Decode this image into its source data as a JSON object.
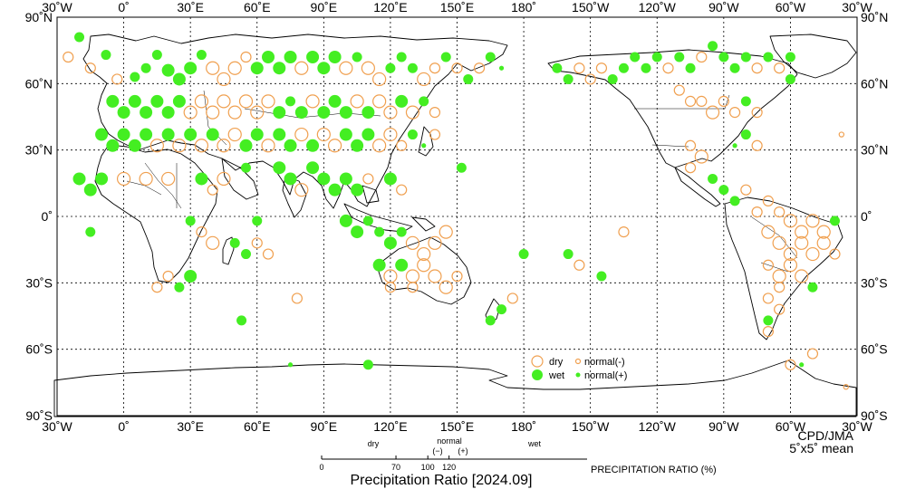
{
  "map": {
    "title": "Precipitation Ratio [2024.09]",
    "credit": "CPD/JMA",
    "resolution": "5˚x5˚ mean",
    "lon_labels": [
      "30˚W",
      "0˚",
      "30˚E",
      "60˚E",
      "90˚E",
      "120˚E",
      "150˚E",
      "180˚",
      "150˚W",
      "120˚W",
      "90˚W",
      "60˚W",
      "30˚W"
    ],
    "lat_labels": [
      "90˚N",
      "60˚N",
      "30˚N",
      "0˚",
      "30˚S",
      "60˚S",
      "90˚S"
    ],
    "lon_range_deg": [
      -30,
      330
    ],
    "lat_range_deg": [
      -90,
      90
    ],
    "colors": {
      "dry": "#f0a050",
      "wet": "#44ee22"
    }
  },
  "legend": {
    "dry": "dry",
    "wet": "wet",
    "normal_minus": "normal(-)",
    "normal_plus": "normal(+)"
  },
  "scale": {
    "dry": "dry",
    "normal": "normal",
    "minus": "(−)",
    "plus": "(+)",
    "wet": "wet",
    "ticks": [
      "0",
      "70",
      "100",
      "120"
    ],
    "tick_values": [
      0,
      70,
      100,
      120
    ],
    "axis_range": [
      0,
      250
    ],
    "label": "PRECIPITATION RATIO  (%)"
  },
  "stations": [
    {
      "lon": -20,
      "lat": 81,
      "k": "wet",
      "s": 2
    },
    {
      "lon": -25,
      "lat": 72,
      "k": "dry",
      "s": 2
    },
    {
      "lon": -15,
      "lat": 67,
      "k": "dry",
      "s": 2
    },
    {
      "lon": -8,
      "lat": 73,
      "k": "wet",
      "s": 2
    },
    {
      "lon": -3,
      "lat": 62,
      "k": "dry",
      "s": 2
    },
    {
      "lon": 5,
      "lat": 63,
      "k": "wet",
      "s": 2
    },
    {
      "lon": 10,
      "lat": 67,
      "k": "wet",
      "s": 2
    },
    {
      "lon": 15,
      "lat": 73,
      "k": "wet",
      "s": 2
    },
    {
      "lon": 20,
      "lat": 66,
      "k": "wet",
      "s": 3
    },
    {
      "lon": 25,
      "lat": 62,
      "k": "wet",
      "s": 3
    },
    {
      "lon": 30,
      "lat": 67,
      "k": "wet",
      "s": 3
    },
    {
      "lon": 35,
      "lat": 73,
      "k": "wet",
      "s": 2
    },
    {
      "lon": 40,
      "lat": 67,
      "k": "dry",
      "s": 3
    },
    {
      "lon": 45,
      "lat": 62,
      "k": "dry",
      "s": 3
    },
    {
      "lon": 50,
      "lat": 67,
      "k": "dry",
      "s": 3
    },
    {
      "lon": 55,
      "lat": 72,
      "k": "dry",
      "s": 2
    },
    {
      "lon": 60,
      "lat": 67,
      "k": "wet",
      "s": 3
    },
    {
      "lon": 65,
      "lat": 72,
      "k": "wet",
      "s": 3
    },
    {
      "lon": 70,
      "lat": 67,
      "k": "wet",
      "s": 3
    },
    {
      "lon": 75,
      "lat": 72,
      "k": "wet",
      "s": 3
    },
    {
      "lon": 80,
      "lat": 67,
      "k": "dry",
      "s": 3
    },
    {
      "lon": 85,
      "lat": 72,
      "k": "wet",
      "s": 3
    },
    {
      "lon": 90,
      "lat": 67,
      "k": "wet",
      "s": 3
    },
    {
      "lon": 95,
      "lat": 72,
      "k": "wet",
      "s": 3
    },
    {
      "lon": 100,
      "lat": 67,
      "k": "dry",
      "s": 3
    },
    {
      "lon": 105,
      "lat": 72,
      "k": "wet",
      "s": 2
    },
    {
      "lon": 110,
      "lat": 67,
      "k": "dry",
      "s": 3
    },
    {
      "lon": 115,
      "lat": 62,
      "k": "dry",
      "s": 3
    },
    {
      "lon": 120,
      "lat": 67,
      "k": "wet",
      "s": 2
    },
    {
      "lon": 125,
      "lat": 72,
      "k": "wet",
      "s": 2
    },
    {
      "lon": 130,
      "lat": 67,
      "k": "wet",
      "s": 2
    },
    {
      "lon": 135,
      "lat": 62,
      "k": "dry",
      "s": 3
    },
    {
      "lon": 140,
      "lat": 67,
      "k": "dry",
      "s": 2
    },
    {
      "lon": 145,
      "lat": 72,
      "k": "wet",
      "s": 2
    },
    {
      "lon": 150,
      "lat": 67,
      "k": "dry",
      "s": 2
    },
    {
      "lon": 155,
      "lat": 62,
      "k": "wet",
      "s": 2
    },
    {
      "lon": 160,
      "lat": 67,
      "k": "dry",
      "s": 2
    },
    {
      "lon": 165,
      "lat": 72,
      "k": "wet",
      "s": 2
    },
    {
      "lon": 170,
      "lat": 67,
      "k": "wet",
      "s": 1
    },
    {
      "lon": -5,
      "lat": 52,
      "k": "wet",
      "s": 3
    },
    {
      "lon": 0,
      "lat": 47,
      "k": "wet",
      "s": 3
    },
    {
      "lon": 5,
      "lat": 52,
      "k": "wet",
      "s": 3
    },
    {
      "lon": 10,
      "lat": 47,
      "k": "wet",
      "s": 3
    },
    {
      "lon": 15,
      "lat": 52,
      "k": "wet",
      "s": 3
    },
    {
      "lon": 20,
      "lat": 47,
      "k": "wet",
      "s": 3
    },
    {
      "lon": 25,
      "lat": 52,
      "k": "wet",
      "s": 3
    },
    {
      "lon": 30,
      "lat": 47,
      "k": "dry",
      "s": 3
    },
    {
      "lon": 35,
      "lat": 52,
      "k": "dry",
      "s": 3
    },
    {
      "lon": 40,
      "lat": 47,
      "k": "dry",
      "s": 3
    },
    {
      "lon": 45,
      "lat": 52,
      "k": "dry",
      "s": 3
    },
    {
      "lon": 50,
      "lat": 47,
      "k": "dry",
      "s": 3
    },
    {
      "lon": 55,
      "lat": 52,
      "k": "dry",
      "s": 3
    },
    {
      "lon": 60,
      "lat": 47,
      "k": "dry",
      "s": 3
    },
    {
      "lon": 65,
      "lat": 52,
      "k": "dry",
      "s": 3
    },
    {
      "lon": 70,
      "lat": 47,
      "k": "wet",
      "s": 3
    },
    {
      "lon": 75,
      "lat": 52,
      "k": "wet",
      "s": 2
    },
    {
      "lon": 80,
      "lat": 47,
      "k": "wet",
      "s": 3
    },
    {
      "lon": 85,
      "lat": 52,
      "k": "dry",
      "s": 3
    },
    {
      "lon": 90,
      "lat": 47,
      "k": "wet",
      "s": 3
    },
    {
      "lon": 95,
      "lat": 52,
      "k": "wet",
      "s": 3
    },
    {
      "lon": 100,
      "lat": 47,
      "k": "wet",
      "s": 3
    },
    {
      "lon": 105,
      "lat": 52,
      "k": "dry",
      "s": 3
    },
    {
      "lon": 110,
      "lat": 47,
      "k": "wet",
      "s": 3
    },
    {
      "lon": 115,
      "lat": 52,
      "k": "dry",
      "s": 3
    },
    {
      "lon": 120,
      "lat": 47,
      "k": "dry",
      "s": 3
    },
    {
      "lon": 125,
      "lat": 52,
      "k": "wet",
      "s": 3
    },
    {
      "lon": 130,
      "lat": 47,
      "k": "dry",
      "s": 3
    },
    {
      "lon": 135,
      "lat": 52,
      "k": "wet",
      "s": 2
    },
    {
      "lon": 140,
      "lat": 47,
      "k": "dry",
      "s": 2
    },
    {
      "lon": -10,
      "lat": 37,
      "k": "wet",
      "s": 3
    },
    {
      "lon": -5,
      "lat": 32,
      "k": "wet",
      "s": 3
    },
    {
      "lon": 0,
      "lat": 37,
      "k": "wet",
      "s": 3
    },
    {
      "lon": 5,
      "lat": 32,
      "k": "wet",
      "s": 3
    },
    {
      "lon": 10,
      "lat": 37,
      "k": "wet",
      "s": 3
    },
    {
      "lon": 15,
      "lat": 32,
      "k": "dry",
      "s": 3
    },
    {
      "lon": 20,
      "lat": 37,
      "k": "wet",
      "s": 3
    },
    {
      "lon": 25,
      "lat": 32,
      "k": "dry",
      "s": 3
    },
    {
      "lon": 30,
      "lat": 37,
      "k": "wet",
      "s": 3
    },
    {
      "lon": 35,
      "lat": 32,
      "k": "dry",
      "s": 3
    },
    {
      "lon": 40,
      "lat": 37,
      "k": "wet",
      "s": 3
    },
    {
      "lon": 45,
      "lat": 32,
      "k": "dry",
      "s": 3
    },
    {
      "lon": 50,
      "lat": 37,
      "k": "dry",
      "s": 3
    },
    {
      "lon": 55,
      "lat": 32,
      "k": "wet",
      "s": 3
    },
    {
      "lon": 60,
      "lat": 37,
      "k": "wet",
      "s": 3
    },
    {
      "lon": 65,
      "lat": 32,
      "k": "dry",
      "s": 3
    },
    {
      "lon": 70,
      "lat": 37,
      "k": "wet",
      "s": 3
    },
    {
      "lon": 75,
      "lat": 32,
      "k": "wet",
      "s": 3
    },
    {
      "lon": 80,
      "lat": 37,
      "k": "dry",
      "s": 3
    },
    {
      "lon": 85,
      "lat": 32,
      "k": "wet",
      "s": 3
    },
    {
      "lon": 90,
      "lat": 37,
      "k": "dry",
      "s": 3
    },
    {
      "lon": 95,
      "lat": 32,
      "k": "dry",
      "s": 3
    },
    {
      "lon": 100,
      "lat": 37,
      "k": "wet",
      "s": 3
    },
    {
      "lon": 105,
      "lat": 32,
      "k": "wet",
      "s": 3
    },
    {
      "lon": 110,
      "lat": 37,
      "k": "wet",
      "s": 3
    },
    {
      "lon": 115,
      "lat": 32,
      "k": "dry",
      "s": 3
    },
    {
      "lon": 120,
      "lat": 37,
      "k": "dry",
      "s": 3
    },
    {
      "lon": 125,
      "lat": 32,
      "k": "dry",
      "s": 2
    },
    {
      "lon": 130,
      "lat": 37,
      "k": "wet",
      "s": 2
    },
    {
      "lon": 135,
      "lat": 32,
      "k": "wet",
      "s": 1
    },
    {
      "lon": 140,
      "lat": 37,
      "k": "dry",
      "s": 2
    },
    {
      "lon": -20,
      "lat": 17,
      "k": "wet",
      "s": 3
    },
    {
      "lon": -15,
      "lat": 12,
      "k": "wet",
      "s": 3
    },
    {
      "lon": -10,
      "lat": 17,
      "k": "wet",
      "s": 3
    },
    {
      "lon": 0,
      "lat": 17,
      "k": "dry",
      "s": 3
    },
    {
      "lon": 10,
      "lat": 17,
      "k": "dry",
      "s": 3
    },
    {
      "lon": 20,
      "lat": 17,
      "k": "dry",
      "s": 3
    },
    {
      "lon": 35,
      "lat": 17,
      "k": "wet",
      "s": 3
    },
    {
      "lon": 40,
      "lat": 12,
      "k": "dry",
      "s": 2
    },
    {
      "lon": 45,
      "lat": 17,
      "k": "dry",
      "s": 3
    },
    {
      "lon": 55,
      "lat": 22,
      "k": "wet",
      "s": 2
    },
    {
      "lon": 70,
      "lat": 22,
      "k": "wet",
      "s": 3
    },
    {
      "lon": 75,
      "lat": 17,
      "k": "wet",
      "s": 3
    },
    {
      "lon": 80,
      "lat": 12,
      "k": "dry",
      "s": 3
    },
    {
      "lon": 85,
      "lat": 22,
      "k": "wet",
      "s": 3
    },
    {
      "lon": 90,
      "lat": 17,
      "k": "wet",
      "s": 3
    },
    {
      "lon": 95,
      "lat": 12,
      "k": "wet",
      "s": 3
    },
    {
      "lon": 100,
      "lat": 17,
      "k": "wet",
      "s": 3
    },
    {
      "lon": 105,
      "lat": 12,
      "k": "wet",
      "s": 3
    },
    {
      "lon": 110,
      "lat": 17,
      "k": "dry",
      "s": 2
    },
    {
      "lon": 120,
      "lat": 17,
      "k": "wet",
      "s": 3
    },
    {
      "lon": 125,
      "lat": 12,
      "k": "dry",
      "s": 2
    },
    {
      "lon": 152,
      "lat": 22,
      "k": "wet",
      "s": 2
    },
    {
      "lon": 30,
      "lat": -2,
      "k": "wet",
      "s": 2
    },
    {
      "lon": 35,
      "lat": -7,
      "k": "dry",
      "s": 2
    },
    {
      "lon": 40,
      "lat": -12,
      "k": "dry",
      "s": 3
    },
    {
      "lon": 50,
      "lat": -12,
      "k": "wet",
      "s": 2
    },
    {
      "lon": 55,
      "lat": -17,
      "k": "wet",
      "s": 2
    },
    {
      "lon": 60,
      "lat": -12,
      "k": "dry",
      "s": 2
    },
    {
      "lon": 65,
      "lat": -17,
      "k": "dry",
      "s": 2
    },
    {
      "lon": 60,
      "lat": -2,
      "k": "wet",
      "s": 2
    },
    {
      "lon": 30,
      "lat": -27,
      "k": "wet",
      "s": 3
    },
    {
      "lon": 25,
      "lat": -32,
      "k": "wet",
      "s": 2
    },
    {
      "lon": 20,
      "lat": -27,
      "k": "dry",
      "s": 2
    },
    {
      "lon": 15,
      "lat": -32,
      "k": "dry",
      "s": 2
    },
    {
      "lon": -15,
      "lat": -7,
      "k": "wet",
      "s": 2
    },
    {
      "lon": 53,
      "lat": -47,
      "k": "wet",
      "s": 2
    },
    {
      "lon": 78,
      "lat": -37,
      "k": "dry",
      "s": 2
    },
    {
      "lon": 100,
      "lat": -2,
      "k": "wet",
      "s": 3
    },
    {
      "lon": 105,
      "lat": -7,
      "k": "wet",
      "s": 3
    },
    {
      "lon": 110,
      "lat": -2,
      "k": "wet",
      "s": 2
    },
    {
      "lon": 115,
      "lat": -7,
      "k": "wet",
      "s": 2
    },
    {
      "lon": 120,
      "lat": -12,
      "k": "wet",
      "s": 3
    },
    {
      "lon": 125,
      "lat": -7,
      "k": "wet",
      "s": 2
    },
    {
      "lon": 130,
      "lat": -12,
      "k": "dry",
      "s": 3
    },
    {
      "lon": 135,
      "lat": -17,
      "k": "dry",
      "s": 3
    },
    {
      "lon": 140,
      "lat": -12,
      "k": "dry",
      "s": 3
    },
    {
      "lon": 145,
      "lat": -7,
      "k": "dry",
      "s": 3
    },
    {
      "lon": 115,
      "lat": -22,
      "k": "wet",
      "s": 3
    },
    {
      "lon": 120,
      "lat": -27,
      "k": "dry",
      "s": 3
    },
    {
      "lon": 125,
      "lat": -22,
      "k": "wet",
      "s": 3
    },
    {
      "lon": 130,
      "lat": -27,
      "k": "dry",
      "s": 3
    },
    {
      "lon": 135,
      "lat": -22,
      "k": "dry",
      "s": 3
    },
    {
      "lon": 140,
      "lat": -27,
      "k": "dry",
      "s": 3
    },
    {
      "lon": 145,
      "lat": -32,
      "k": "dry",
      "s": 3
    },
    {
      "lon": 150,
      "lat": -27,
      "k": "dry",
      "s": 2
    },
    {
      "lon": 120,
      "lat": -32,
      "k": "dry",
      "s": 2
    },
    {
      "lon": 130,
      "lat": -32,
      "k": "dry",
      "s": 2
    },
    {
      "lon": 170,
      "lat": -42,
      "k": "wet",
      "s": 2
    },
    {
      "lon": 165,
      "lat": -47,
      "k": "wet",
      "s": 2
    },
    {
      "lon": 175,
      "lat": -37,
      "k": "dry",
      "s": 2
    },
    {
      "lon": 180,
      "lat": -17,
      "k": "wet",
      "s": 2
    },
    {
      "lon": -160,
      "lat": -17,
      "k": "wet",
      "s": 2
    },
    {
      "lon": -155,
      "lat": -22,
      "k": "dry",
      "s": 2
    },
    {
      "lon": -145,
      "lat": -27,
      "k": "wet",
      "s": 2
    },
    {
      "lon": -135,
      "lat": -7,
      "k": "dry",
      "s": 2
    },
    {
      "lon": -165,
      "lat": 67,
      "k": "wet",
      "s": 2
    },
    {
      "lon": -160,
      "lat": 62,
      "k": "wet",
      "s": 2
    },
    {
      "lon": -155,
      "lat": 67,
      "k": "dry",
      "s": 2
    },
    {
      "lon": -150,
      "lat": 62,
      "k": "dry",
      "s": 2
    },
    {
      "lon": -145,
      "lat": 67,
      "k": "dry",
      "s": 2
    },
    {
      "lon": -140,
      "lat": 62,
      "k": "wet",
      "s": 2
    },
    {
      "lon": -135,
      "lat": 67,
      "k": "wet",
      "s": 2
    },
    {
      "lon": -130,
      "lat": 72,
      "k": "wet",
      "s": 2
    },
    {
      "lon": -125,
      "lat": 67,
      "k": "wet",
      "s": 2
    },
    {
      "lon": -120,
      "lat": 72,
      "k": "wet",
      "s": 2
    },
    {
      "lon": -115,
      "lat": 67,
      "k": "dry",
      "s": 2
    },
    {
      "lon": -110,
      "lat": 72,
      "k": "wet",
      "s": 2
    },
    {
      "lon": -105,
      "lat": 67,
      "k": "wet",
      "s": 2
    },
    {
      "lon": -100,
      "lat": 72,
      "k": "dry",
      "s": 2
    },
    {
      "lon": -95,
      "lat": 77,
      "k": "wet",
      "s": 2
    },
    {
      "lon": -90,
      "lat": 72,
      "k": "wet",
      "s": 2
    },
    {
      "lon": -85,
      "lat": 67,
      "k": "wet",
      "s": 2
    },
    {
      "lon": -80,
      "lat": 72,
      "k": "wet",
      "s": 2
    },
    {
      "lon": -75,
      "lat": 67,
      "k": "dry",
      "s": 2
    },
    {
      "lon": -70,
      "lat": 72,
      "k": "wet",
      "s": 2
    },
    {
      "lon": -65,
      "lat": 67,
      "k": "dry",
      "s": 2
    },
    {
      "lon": -60,
      "lat": 62,
      "k": "wet",
      "s": 2
    },
    {
      "lon": -60,
      "lat": 72,
      "k": "wet",
      "s": 2
    },
    {
      "lon": -100,
      "lat": 52,
      "k": "dry",
      "s": 2
    },
    {
      "lon": -95,
      "lat": 47,
      "k": "dry",
      "s": 3
    },
    {
      "lon": -90,
      "lat": 52,
      "k": "dry",
      "s": 2
    },
    {
      "lon": -85,
      "lat": 47,
      "k": "dry",
      "s": 2
    },
    {
      "lon": -80,
      "lat": 52,
      "k": "wet",
      "s": 2
    },
    {
      "lon": -75,
      "lat": 47,
      "k": "dry",
      "s": 2
    },
    {
      "lon": -110,
      "lat": 57,
      "k": "dry",
      "s": 2
    },
    {
      "lon": -105,
      "lat": 52,
      "k": "dry",
      "s": 2
    },
    {
      "lon": -80,
      "lat": 37,
      "k": "wet",
      "s": 2
    },
    {
      "lon": -75,
      "lat": 32,
      "k": "dry",
      "s": 2
    },
    {
      "lon": -85,
      "lat": 32,
      "k": "wet",
      "s": 1
    },
    {
      "lon": -105,
      "lat": 32,
      "k": "dry",
      "s": 2
    },
    {
      "lon": -100,
      "lat": 27,
      "k": "dry",
      "s": 3
    },
    {
      "lon": -105,
      "lat": 22,
      "k": "dry",
      "s": 2
    },
    {
      "lon": -95,
      "lat": 17,
      "k": "wet",
      "s": 2
    },
    {
      "lon": -90,
      "lat": 12,
      "k": "wet",
      "s": 2
    },
    {
      "lon": -85,
      "lat": 7,
      "k": "wet",
      "s": 2
    },
    {
      "lon": -80,
      "lat": 12,
      "k": "dry",
      "s": 2
    },
    {
      "lon": -75,
      "lat": 2,
      "k": "dry",
      "s": 2
    },
    {
      "lon": -70,
      "lat": 7,
      "k": "dry",
      "s": 2
    },
    {
      "lon": -65,
      "lat": 2,
      "k": "dry",
      "s": 2
    },
    {
      "lon": -60,
      "lat": -2,
      "k": "dry",
      "s": 3
    },
    {
      "lon": -55,
      "lat": -7,
      "k": "dry",
      "s": 3
    },
    {
      "lon": -50,
      "lat": -2,
      "k": "dry",
      "s": 3
    },
    {
      "lon": -45,
      "lat": -7,
      "k": "dry",
      "s": 3
    },
    {
      "lon": -40,
      "lat": -2,
      "k": "wet",
      "s": 2
    },
    {
      "lon": -70,
      "lat": -7,
      "k": "dry",
      "s": 3
    },
    {
      "lon": -65,
      "lat": -12,
      "k": "dry",
      "s": 3
    },
    {
      "lon": -60,
      "lat": -17,
      "k": "dry",
      "s": 3
    },
    {
      "lon": -55,
      "lat": -12,
      "k": "dry",
      "s": 3
    },
    {
      "lon": -50,
      "lat": -17,
      "k": "dry",
      "s": 3
    },
    {
      "lon": -45,
      "lat": -12,
      "k": "dry",
      "s": 3
    },
    {
      "lon": -40,
      "lat": -17,
      "k": "dry",
      "s": 2
    },
    {
      "lon": -70,
      "lat": -22,
      "k": "dry",
      "s": 2
    },
    {
      "lon": -65,
      "lat": -27,
      "k": "dry",
      "s": 3
    },
    {
      "lon": -60,
      "lat": -22,
      "k": "dry",
      "s": 3
    },
    {
      "lon": -55,
      "lat": -27,
      "k": "dry",
      "s": 3
    },
    {
      "lon": -50,
      "lat": -32,
      "k": "wet",
      "s": 2
    },
    {
      "lon": -65,
      "lat": -32,
      "k": "dry",
      "s": 2
    },
    {
      "lon": -70,
      "lat": -37,
      "k": "dry",
      "s": 2
    },
    {
      "lon": -65,
      "lat": -42,
      "k": "dry",
      "s": 2
    },
    {
      "lon": -70,
      "lat": -47,
      "k": "wet",
      "s": 2
    },
    {
      "lon": -70,
      "lat": -52,
      "k": "dry",
      "s": 2
    },
    {
      "lon": -50,
      "lat": -62,
      "k": "dry",
      "s": 2
    },
    {
      "lon": -60,
      "lat": -67,
      "k": "dry",
      "s": 2
    },
    {
      "lon": -55,
      "lat": -67,
      "k": "wet",
      "s": 1
    },
    {
      "lon": 110,
      "lat": -67,
      "k": "wet",
      "s": 2
    },
    {
      "lon": 75,
      "lat": -67,
      "k": "wet",
      "s": 1
    },
    {
      "lon": -35,
      "lat": -77,
      "k": "dry",
      "s": 1
    },
    {
      "lon": -37,
      "lat": 37,
      "k": "dry",
      "s": 1
    }
  ]
}
